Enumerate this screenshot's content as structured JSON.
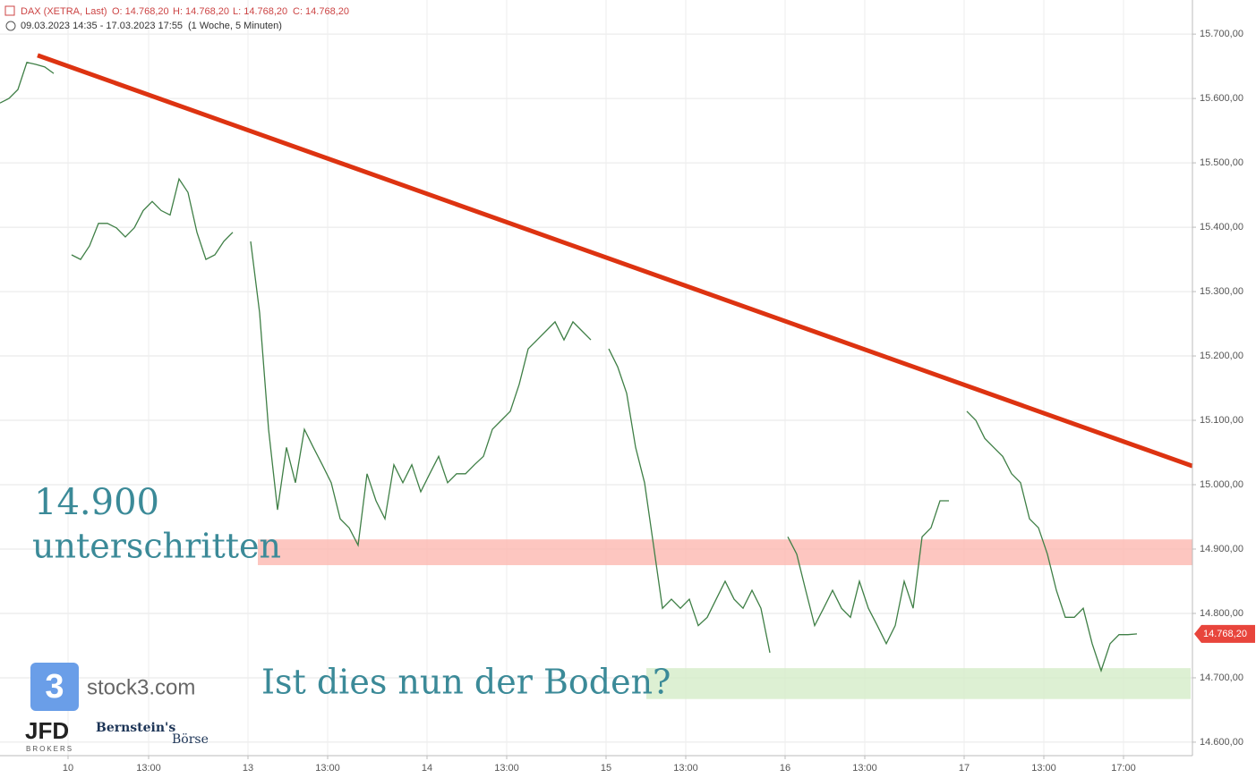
{
  "chart_data": {
    "type": "line",
    "header": {
      "title": "DAX (XETRA, Last)",
      "open": "O: 14.768,20",
      "high": "H: 14.768,20",
      "low": "L: 14.768,20",
      "close": "C: 14.768,20",
      "range": "09.03.2023 14:35 - 17.03.2023 17:55",
      "interval": "(1 Woche, 5 Minuten)"
    },
    "x": [
      0,
      1,
      2,
      3,
      4,
      5,
      6,
      7,
      8,
      9,
      10,
      11,
      12,
      13,
      14,
      15,
      16,
      17,
      18,
      19,
      20,
      21,
      22,
      23,
      24,
      25,
      26,
      27,
      28,
      29,
      30,
      31,
      32,
      33,
      34,
      35,
      36,
      37,
      38,
      39,
      40,
      41,
      42,
      43,
      44,
      45,
      46,
      47,
      48,
      49,
      50,
      51,
      52,
      53,
      54,
      55,
      56,
      57,
      58,
      59,
      60,
      61,
      62,
      63,
      64,
      65,
      66,
      67,
      68,
      69,
      70,
      71,
      72,
      73,
      74,
      75,
      76,
      77,
      78,
      79,
      80,
      81,
      82,
      83,
      84,
      85,
      86,
      87,
      88,
      89,
      90,
      91,
      92,
      93,
      94,
      95,
      96,
      97,
      98,
      99,
      100,
      101,
      102,
      103,
      104,
      105,
      106,
      107,
      108,
      109,
      110,
      111,
      112,
      113,
      114,
      115,
      116,
      117,
      118,
      119,
      120,
      121,
      122,
      123,
      124,
      125,
      126,
      127
    ],
    "series": [
      {
        "name": "DAX",
        "color": "#3f7f46",
        "values": [
          15593,
          15600,
          15614,
          15656,
          15653,
          15649,
          15639,
          null,
          15357,
          15350,
          15371,
          15406,
          15406,
          15399,
          15385,
          15399,
          15426,
          15440,
          15426,
          15419,
          15475,
          15454,
          15392,
          15350,
          15357,
          15378,
          15392,
          null,
          15378,
          15267,
          15086,
          14961,
          15058,
          15003,
          15086,
          15058,
          15031,
          15003,
          14947,
          14933,
          14906,
          15017,
          14975,
          14947,
          15031,
          15003,
          15031,
          14989,
          15017,
          15044,
          15003,
          15017,
          15017,
          15031,
          15044,
          15086,
          15100,
          15114,
          15156,
          15211,
          15225,
          15239,
          15253,
          15225,
          15253,
          15239,
          15225,
          null,
          15211,
          15183,
          15142,
          15058,
          15003,
          14906,
          14808,
          14822,
          14808,
          14822,
          14781,
          14794,
          14822,
          14850,
          14822,
          14808,
          14836,
          14808,
          14739,
          null,
          14919,
          14892,
          14836,
          14781,
          14808,
          14836,
          14808,
          14794,
          14850,
          14808,
          14781,
          14753,
          14781,
          14850,
          14808,
          14919,
          14933,
          14975,
          14975,
          null,
          15114,
          15100,
          15072,
          15058,
          15044,
          15017,
          15003,
          14947,
          14933,
          14892,
          14836,
          14794,
          14794,
          14808,
          14753,
          14711,
          14753,
          14767,
          14767,
          14768.2
        ]
      }
    ],
    "xlim": [
      0,
      133.2
    ],
    "xticks": [
      {
        "value": 7.6,
        "label": "10"
      },
      {
        "value": 16.6,
        "label": "13:00"
      },
      {
        "value": 27.7,
        "label": "13"
      },
      {
        "value": 36.6,
        "label": "13:00"
      },
      {
        "value": 47.7,
        "label": "14"
      },
      {
        "value": 56.6,
        "label": "13:00"
      },
      {
        "value": 67.7,
        "label": "15"
      },
      {
        "value": 76.6,
        "label": "13:00"
      },
      {
        "value": 87.7,
        "label": "16"
      },
      {
        "value": 96.6,
        "label": "13:00"
      },
      {
        "value": 107.7,
        "label": "17"
      },
      {
        "value": 116.6,
        "label": "13:00"
      },
      {
        "value": 125.5,
        "label": "17:00"
      }
    ],
    "ylim": [
      14586,
      15753
    ],
    "yticks": [
      {
        "value": 14600,
        "label": "14.600,00"
      },
      {
        "value": 14700,
        "label": "14.700,00"
      },
      {
        "value": 14800,
        "label": "14.800,00"
      },
      {
        "value": 14900,
        "label": "14.900,00"
      },
      {
        "value": 15000,
        "label": "15.000,00"
      },
      {
        "value": 15100,
        "label": "15.100,00"
      },
      {
        "value": 15200,
        "label": "15.200,00"
      },
      {
        "value": 15300,
        "label": "15.300,00"
      },
      {
        "value": 15400,
        "label": "15.400,00"
      },
      {
        "value": 15500,
        "label": "15.500,00"
      },
      {
        "value": 15600,
        "label": "15.600,00"
      },
      {
        "value": 15700,
        "label": "15.700,00"
      }
    ],
    "grid": true,
    "last_price": {
      "value": 14768.2,
      "label": "14.768,20"
    },
    "trendline": {
      "color": "#dd3311",
      "x": [
        4.2,
        133.2
      ],
      "values": [
        15667,
        15029
      ]
    },
    "zones": [
      {
        "color": "#fcb8b0",
        "xlim": [
          28.8,
          133.2
        ],
        "ylim": [
          14875,
          14915
        ]
      },
      {
        "color": "#d5ecc8",
        "xlim": [
          72.2,
          133.0
        ],
        "ylim": [
          14667,
          14715
        ]
      }
    ],
    "annotations": {
      "level": "14.900",
      "level_text": "unterschritten",
      "question": "Ist dies nun der Boden?"
    },
    "logos": {
      "stock3": "stock3.com",
      "jfd": "JFD",
      "brokers": "BROKERS",
      "bernstein": "Bernstein's",
      "boerse": "Börse"
    }
  }
}
